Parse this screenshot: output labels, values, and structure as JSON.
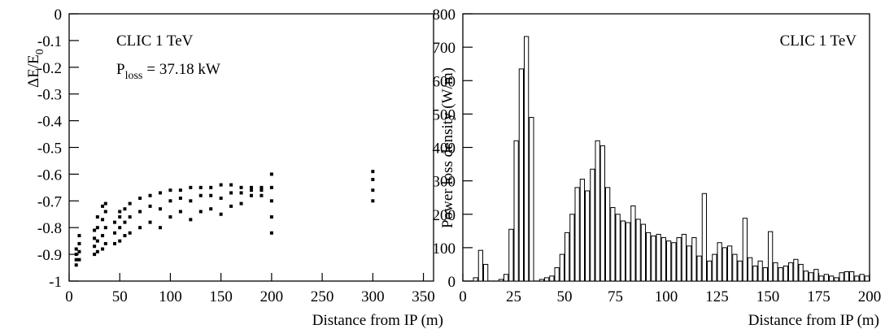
{
  "chart_data": [
    {
      "type": "scatter",
      "x_label": "Distance from IP (m)",
      "y_label": [
        "ΔE/E",
        "0"
      ],
      "annotation": "CLIC 1 TeV",
      "annotation2": [
        "P",
        "loss",
        "= 37.18 kW"
      ],
      "xlim": [
        0,
        360
      ],
      "ylim": [
        -1,
        0
      ],
      "xticks": [
        0,
        50,
        100,
        150,
        200,
        250,
        300,
        350
      ],
      "yticks": [
        0,
        -0.1,
        -0.2,
        -0.3,
        -0.4,
        -0.5,
        -0.6,
        -0.7,
        -0.8,
        -0.9,
        -1
      ],
      "color": "#000000",
      "x": [
        7,
        7,
        7,
        7,
        10,
        10,
        10,
        10,
        25,
        25,
        25,
        25,
        28,
        28,
        28,
        28,
        33,
        33,
        33,
        33,
        36,
        36,
        36,
        36,
        45,
        45,
        45,
        50,
        50,
        50,
        50,
        55,
        55,
        55,
        60,
        60,
        60,
        70,
        70,
        70,
        80,
        80,
        80,
        90,
        90,
        90,
        100,
        100,
        100,
        110,
        110,
        110,
        120,
        120,
        120,
        130,
        130,
        130,
        140,
        140,
        140,
        150,
        150,
        150,
        160,
        160,
        160,
        170,
        170,
        170,
        180,
        180,
        180,
        190,
        190,
        190,
        200,
        200,
        200,
        200,
        200,
        300,
        300,
        300,
        300
      ],
      "y": [
        -0.94,
        -0.92,
        -0.9,
        -0.88,
        -0.92,
        -0.89,
        -0.86,
        -0.83,
        -0.9,
        -0.87,
        -0.84,
        -0.81,
        -0.89,
        -0.85,
        -0.8,
        -0.76,
        -0.88,
        -0.83,
        -0.77,
        -0.72,
        -0.86,
        -0.8,
        -0.74,
        -0.71,
        -0.86,
        -0.82,
        -0.78,
        -0.85,
        -0.8,
        -0.76,
        -0.74,
        -0.83,
        -0.78,
        -0.73,
        -0.82,
        -0.76,
        -0.71,
        -0.8,
        -0.74,
        -0.69,
        -0.78,
        -0.72,
        -0.68,
        -0.8,
        -0.73,
        -0.67,
        -0.76,
        -0.7,
        -0.66,
        -0.74,
        -0.69,
        -0.66,
        -0.77,
        -0.7,
        -0.65,
        -0.74,
        -0.68,
        -0.65,
        -0.73,
        -0.68,
        -0.65,
        -0.75,
        -0.69,
        -0.64,
        -0.72,
        -0.67,
        -0.64,
        -0.71,
        -0.67,
        -0.65,
        -0.68,
        -0.66,
        -0.65,
        -0.68,
        -0.66,
        -0.65,
        -0.82,
        -0.76,
        -0.7,
        -0.65,
        -0.6,
        -0.7,
        -0.66,
        -0.62,
        -0.59
      ]
    },
    {
      "type": "histogram",
      "x_label": "Distance from IP (m)",
      "y_label": "Power loss density (W/m)",
      "annotation": "CLIC 1 TeV",
      "xlim": [
        0,
        200
      ],
      "ylim": [
        0,
        800
      ],
      "xticks": [
        0,
        25,
        50,
        75,
        100,
        125,
        150,
        175,
        200
      ],
      "yticks": [
        0,
        100,
        200,
        300,
        400,
        500,
        600,
        700,
        800
      ],
      "color": "#ffffff",
      "bins": [
        0,
        2.5,
        5,
        7.5,
        10,
        12.5,
        15,
        17.5,
        20,
        22.5,
        25,
        27.5,
        30,
        32.5,
        35,
        37.5,
        40,
        42.5,
        45,
        47.5,
        50,
        52.5,
        55,
        57.5,
        60,
        62.5,
        65,
        67.5,
        70,
        72.5,
        75,
        77.5,
        80,
        82.5,
        85,
        87.5,
        90,
        92.5,
        95,
        97.5,
        100,
        102.5,
        105,
        107.5,
        110,
        112.5,
        115,
        117.5,
        120,
        122.5,
        125,
        127.5,
        130,
        132.5,
        135,
        137.5,
        140,
        142.5,
        145,
        147.5,
        150,
        152.5,
        155,
        157.5,
        160,
        162.5,
        165,
        167.5,
        170,
        172.5,
        175,
        177.5,
        180,
        182.5,
        185,
        187.5,
        190,
        192.5,
        195,
        197.5,
        200
      ],
      "counts": [
        0,
        0,
        10,
        92,
        50,
        0,
        0,
        5,
        20,
        155,
        420,
        635,
        732,
        490,
        0,
        5,
        10,
        15,
        40,
        80,
        145,
        200,
        280,
        305,
        270,
        335,
        420,
        405,
        280,
        220,
        200,
        180,
        175,
        225,
        185,
        170,
        145,
        135,
        140,
        130,
        120,
        115,
        130,
        140,
        105,
        130,
        75,
        262,
        60,
        80,
        115,
        100,
        105,
        80,
        60,
        188,
        70,
        45,
        60,
        40,
        148,
        55,
        40,
        45,
        55,
        65,
        50,
        30,
        25,
        35,
        15,
        20,
        15,
        10,
        25,
        28,
        28,
        15,
        20,
        15
      ]
    }
  ]
}
